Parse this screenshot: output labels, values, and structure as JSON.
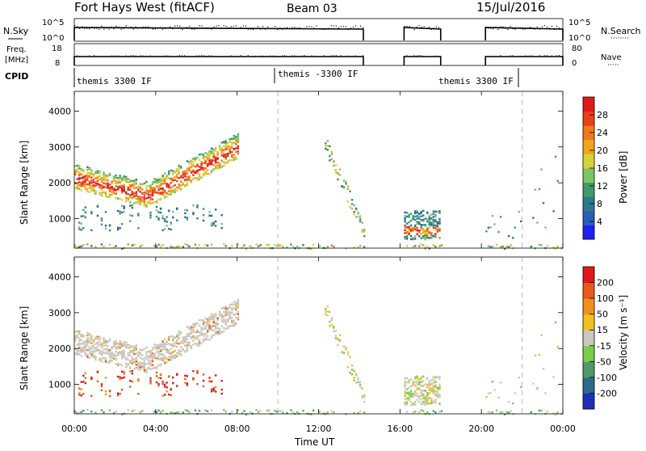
{
  "header": {
    "title": "Fort Hays West (fitACF)",
    "beam": "Beam 03",
    "date": "15/Jul/2016"
  },
  "status_panels": {
    "nsky_label": "N.Sky",
    "nsky_ticks": [
      "10^5",
      "10^0"
    ],
    "nsearch_label": "N.Search",
    "nsearch_ticks": [
      "10^5",
      "10^0"
    ],
    "freq_label_1": "Freq.",
    "freq_label_2": "[MHz]",
    "freq_ticks": [
      "18",
      "8"
    ],
    "nave_label": "Nave",
    "nave_ticks": [
      "80",
      "0"
    ],
    "cpid_label": "CPID",
    "cpid_segments": [
      {
        "text": "themis 3300 IF",
        "start_h": 0.0
      },
      {
        "text": "themis -3300 IF",
        "start_h": 10.0
      },
      {
        "text": "themis 3300 IF",
        "start_h": 22.0
      }
    ],
    "data_gaps_h": [
      [
        14.2,
        16.2
      ],
      [
        18.0,
        20.2
      ]
    ]
  },
  "chart_data": [
    {
      "type": "heatmap",
      "name": "power",
      "ylabel": "Slant Range [km]",
      "yticks": [
        1000,
        2000,
        3000,
        4000
      ],
      "ylim": [
        180,
        4550
      ],
      "xlim": [
        0,
        24
      ],
      "colorbar": {
        "label": "Power [dB]",
        "ticks": [
          "28",
          "24",
          "20",
          "16",
          "12",
          "8",
          "4"
        ],
        "colors": [
          "#1f1ff0",
          "#2a5fb8",
          "#2f7a8a",
          "#3f9a6a",
          "#7cc46a",
          "#d7d23a",
          "#f0a81a",
          "#f07a1a",
          "#e8401a",
          "#dd1a1a"
        ]
      },
      "dashed_lines_h": [
        10.0,
        22.0
      ]
    },
    {
      "type": "heatmap",
      "name": "velocity",
      "ylabel": "Slant Range [km]",
      "yticks": [
        1000,
        2000,
        3000,
        4000
      ],
      "ylim": [
        180,
        4550
      ],
      "xlim": [
        0,
        24
      ],
      "xticks": [
        "00:00",
        "04:00",
        "08:00",
        "12:00",
        "16:00",
        "20:00",
        "00:00"
      ],
      "xlabel": "Time UT",
      "colorbar": {
        "label": "Velocity [m s⁻¹]",
        "ticks": [
          "200",
          "100",
          "50",
          "15",
          "-15",
          "-50",
          "-100",
          "-200"
        ],
        "colors": [
          "#1f2fb8",
          "#2f6a8a",
          "#4f9a6a",
          "#7ccc4a",
          "#c8c8c0",
          "#f0c020",
          "#f09020",
          "#e85a1a",
          "#dd1a1a"
        ]
      },
      "dashed_lines_h": [
        10.0,
        22.0
      ]
    }
  ],
  "echo_regions": [
    {
      "t0": 0.0,
      "t1": 8.0,
      "kind": "arc",
      "range_start": 2150,
      "range_mid": 1650,
      "range_end": 3000
    },
    {
      "t0": 0.0,
      "t1": 7.2,
      "kind": "band",
      "range_lo": 700,
      "range_hi": 1400
    },
    {
      "t0": 12.3,
      "t1": 14.2,
      "kind": "streak",
      "range_lo": 700,
      "range_hi": 3100
    },
    {
      "t0": 16.2,
      "t1": 18.0,
      "kind": "block",
      "range_lo": 450,
      "range_hi": 1250
    },
    {
      "t0": 20.2,
      "t1": 22.0,
      "kind": "sparse",
      "range_lo": 400,
      "range_hi": 1300
    },
    {
      "t0": 22.5,
      "t1": 24.0,
      "kind": "sparse",
      "range_lo": 400,
      "range_hi": 2800
    },
    {
      "t0": 0.0,
      "t1": 24.0,
      "kind": "ground",
      "range_lo": 190,
      "range_hi": 320
    }
  ]
}
